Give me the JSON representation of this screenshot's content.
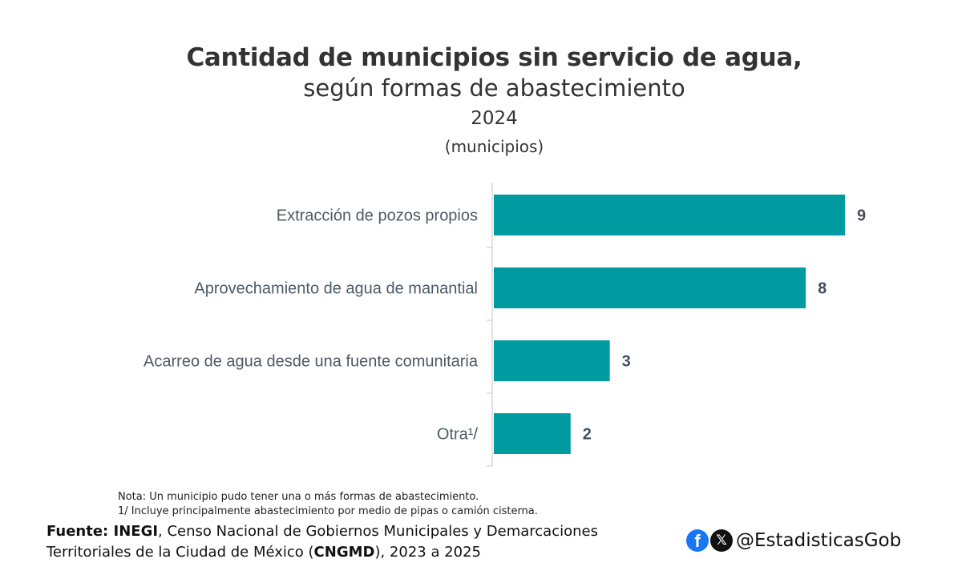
{
  "header": {
    "title_line1": "Cantidad de municipios sin servicio de agua,",
    "title_line2": "según formas de abastecimiento",
    "year": "2024",
    "unit": "(municipios)"
  },
  "chart_data": {
    "type": "bar",
    "orientation": "horizontal",
    "title": "Cantidad de municipios sin servicio de agua, según formas de abastecimiento",
    "subtitle": "2024",
    "unit_label": "(municipios)",
    "categories": [
      "Extracción de pozos propios",
      "Aprovechamiento de agua de manantial",
      "Acarreo de agua desde una fuente comunitaria",
      "Otra¹/"
    ],
    "values": [
      9,
      8,
      3,
      2
    ],
    "value_labels": [
      "9",
      "8",
      "3",
      "2"
    ],
    "xlim": [
      0,
      9
    ],
    "grid": false,
    "bar_color": "#009ba0"
  },
  "notes": {
    "line1": "Nota: Un municipio pudo tener una o más formas de abastecimiento.",
    "line2": "1/ Incluye principalmente abastecimiento por medio de pipas o camión cisterna."
  },
  "source": {
    "prefix": "Fuente: INEGI",
    "text1": ", Censo Nacional de Gobiernos Municipales y Demarcaciones Territoriales de la Ciudad de México (",
    "abbr": "CNGMD",
    "text2": "), 2023 a 2025"
  },
  "social": {
    "facebook_icon": "facebook-icon",
    "x_icon": "x-icon",
    "facebook_glyph": "f",
    "x_glyph": "𝕏",
    "handle": "@EstadisticasGob"
  }
}
